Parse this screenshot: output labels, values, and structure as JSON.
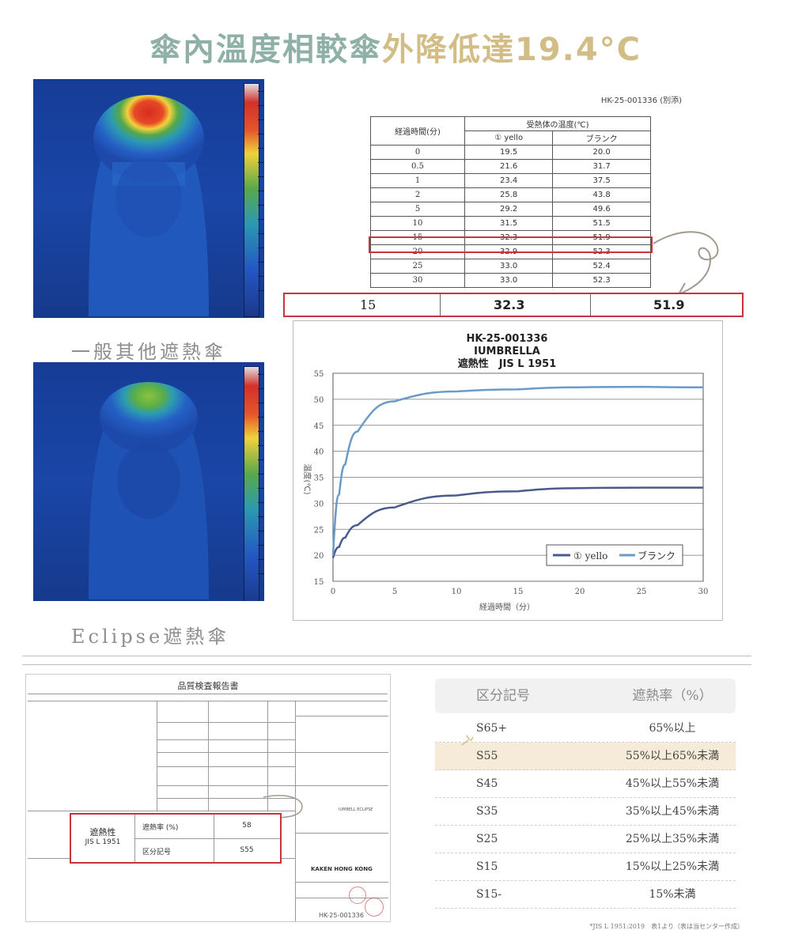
{
  "headline": {
    "part1": "傘內溫度相較傘",
    "part2": "外降低達19.4°C"
  },
  "thermal": {
    "top_caption": "一般其他遮熱傘",
    "bottom_caption": "Eclipse遮熱傘"
  },
  "doc_ref": "HK-25-001336 (別添)",
  "data_table": {
    "header_time": "経過時間(分)",
    "header_group": "受熱体の温度(℃)",
    "header_col1": "① yello",
    "header_col2": "ブランク",
    "rows": [
      [
        "0",
        "19.5",
        "20.0"
      ],
      [
        "0.5",
        "21.6",
        "31.7"
      ],
      [
        "1",
        "23.4",
        "37.5"
      ],
      [
        "2",
        "25.8",
        "43.8"
      ],
      [
        "5",
        "29.2",
        "49.6"
      ],
      [
        "10",
        "31.5",
        "51.5"
      ],
      [
        "15",
        "32.3",
        "51.9"
      ],
      [
        "20",
        "32.9",
        "52.3"
      ],
      [
        "25",
        "33.0",
        "52.4"
      ],
      [
        "30",
        "33.0",
        "52.3"
      ]
    ],
    "summary": {
      "time": "15",
      "col1": "32.3",
      "col2": "51.9"
    }
  },
  "chart_data": {
    "type": "line",
    "title": "HK-25-001336",
    "subtitle1": "IUMBRELLA",
    "subtitle2": "遮熱性　JIS L 1951",
    "xlabel": "経過時間（分）",
    "ylabel": "温度(℃)",
    "xlim": [
      0,
      30
    ],
    "ylim": [
      15,
      55
    ],
    "xticks": [
      "0",
      "5",
      "10",
      "15",
      "20",
      "25",
      "30"
    ],
    "yticks": [
      "15",
      "20",
      "25",
      "30",
      "35",
      "40",
      "45",
      "50",
      "55"
    ],
    "grid": true,
    "legend_position": "bottom-right",
    "series": [
      {
        "name": "① yello",
        "color": "#4a5a8c",
        "x": [
          0,
          0.5,
          1,
          2,
          5,
          10,
          15,
          20,
          25,
          30
        ],
        "y": [
          19.5,
          21.6,
          23.4,
          25.8,
          29.2,
          31.5,
          32.3,
          32.9,
          33.0,
          33.0
        ]
      },
      {
        "name": "ブランク",
        "color": "#6a9ac8",
        "x": [
          0,
          0.5,
          1,
          2,
          5,
          10,
          15,
          20,
          25,
          30
        ],
        "y": [
          20.0,
          31.7,
          37.5,
          43.8,
          49.6,
          51.5,
          51.9,
          52.3,
          52.4,
          52.3
        ]
      }
    ]
  },
  "report": {
    "title": "品質検査報告書",
    "label_main": "遮熱性",
    "label_std": "JIS L 1951",
    "row1_label": "遮熱率 (%)",
    "row1_value": "58",
    "row2_label": "区分記号",
    "row2_value": "S55",
    "org": "KAKEN HONG KONG",
    "ref_no": "HK-25-001336",
    "product": "IUMBELL ECLIPSE"
  },
  "rating_table": {
    "header_code": "区分記号",
    "header_rate": "遮熱率（%）",
    "rows": [
      {
        "code": "S65+",
        "rate": "65%以上",
        "highlight": false
      },
      {
        "code": "S55",
        "rate": "55%以上65%未満",
        "highlight": true
      },
      {
        "code": "S45",
        "rate": "45%以上55%未満",
        "highlight": false
      },
      {
        "code": "S35",
        "rate": "35%以上45%未満",
        "highlight": false
      },
      {
        "code": "S25",
        "rate": "25%以上35%未満",
        "highlight": false
      },
      {
        "code": "S15",
        "rate": "15%以上25%未満",
        "highlight": false
      },
      {
        "code": "S15-",
        "rate": "15%未満",
        "highlight": false
      }
    ],
    "footnote": "*JIS L 1951:2019　表1より（表は当センター作成）"
  }
}
